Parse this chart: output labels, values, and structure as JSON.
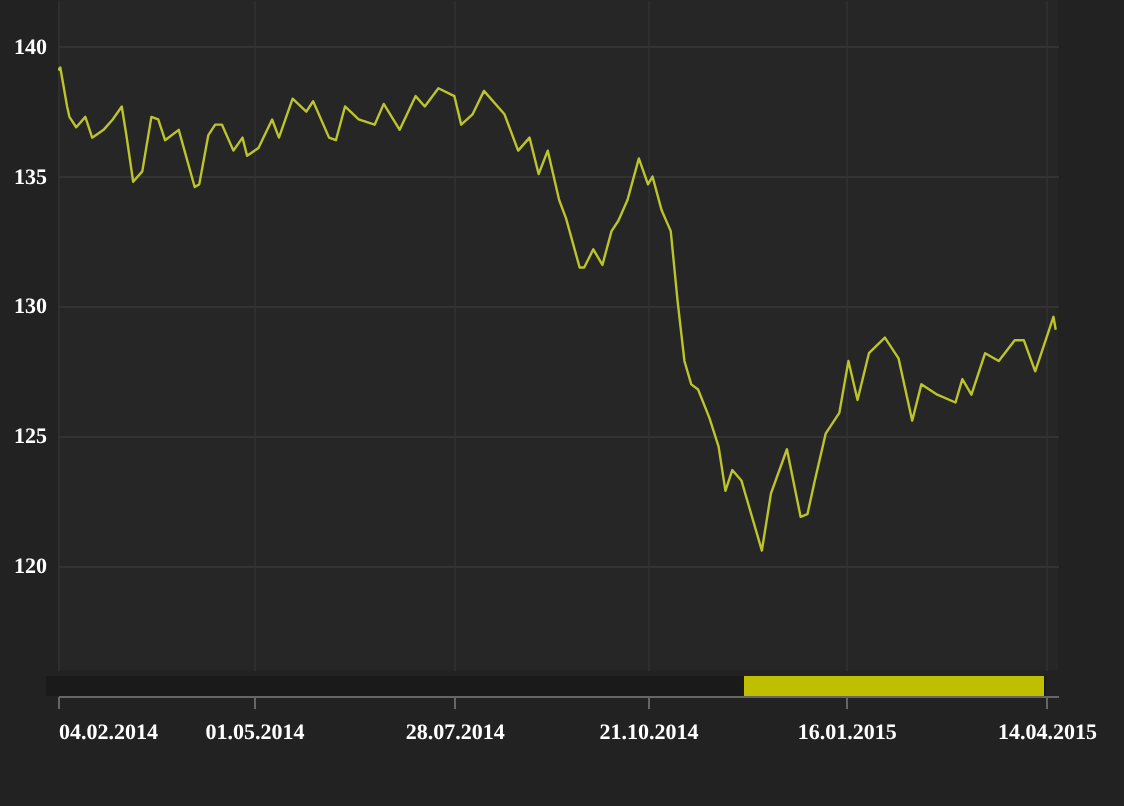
{
  "chart_data": {
    "type": "line",
    "x": [
      "2014-02-04",
      "2014-02-05",
      "2014-02-08",
      "2014-02-09",
      "2014-02-12",
      "2014-02-16",
      "2014-02-19",
      "2014-02-24",
      "2014-02-28",
      "2014-03-04",
      "2014-03-06",
      "2014-03-09",
      "2014-03-13",
      "2014-03-17",
      "2014-03-20",
      "2014-03-23",
      "2014-03-29",
      "2014-04-05",
      "2014-04-07",
      "2014-04-11",
      "2014-04-14",
      "2014-04-17",
      "2014-04-22",
      "2014-04-26",
      "2014-04-28",
      "2014-05-03",
      "2014-05-09",
      "2014-05-12",
      "2014-05-18",
      "2014-05-24",
      "2014-05-27",
      "2014-06-03",
      "2014-06-06",
      "2014-06-10",
      "2014-06-16",
      "2014-06-23",
      "2014-06-27",
      "2014-07-04",
      "2014-07-11",
      "2014-07-15",
      "2014-07-21",
      "2014-07-28",
      "2014-07-31",
      "2014-08-05",
      "2014-08-10",
      "2014-08-19",
      "2014-08-25",
      "2014-08-30",
      "2014-09-03",
      "2014-09-07",
      "2014-09-12",
      "2014-09-15",
      "2014-09-21",
      "2014-09-23",
      "2014-09-27",
      "2014-10-01",
      "2014-10-05",
      "2014-10-08",
      "2014-10-12",
      "2014-10-17",
      "2014-10-21",
      "2014-10-23",
      "2014-10-27",
      "2014-10-31",
      "2014-11-03",
      "2014-11-06",
      "2014-11-09",
      "2014-11-12",
      "2014-11-17",
      "2014-11-21",
      "2014-11-24",
      "2014-11-27",
      "2014-12-01",
      "2014-12-10",
      "2014-12-14",
      "2014-12-21",
      "2014-12-27",
      "2014-12-30",
      "2015-01-02",
      "2015-01-07",
      "2015-01-13",
      "2015-01-17",
      "2015-01-21",
      "2015-01-26",
      "2015-02-02",
      "2015-02-08",
      "2015-02-14",
      "2015-02-18",
      "2015-02-25",
      "2015-03-05",
      "2015-03-08",
      "2015-03-12",
      "2015-03-18",
      "2015-03-24",
      "2015-03-31",
      "2015-04-04",
      "2015-04-09",
      "2015-04-17",
      "2015-04-18"
    ],
    "series": [
      {
        "color": "#bcc42c",
        "values": [
          139.1,
          139.2,
          137.7,
          137.3,
          136.9,
          137.3,
          136.5,
          136.8,
          137.2,
          137.7,
          136.6,
          134.8,
          135.2,
          137.3,
          137.2,
          136.4,
          136.8,
          134.6,
          134.7,
          136.6,
          137.0,
          137.0,
          136.0,
          136.5,
          135.8,
          136.1,
          137.2,
          136.5,
          138.0,
          137.5,
          137.9,
          136.5,
          136.4,
          137.7,
          137.2,
          137.0,
          137.8,
          136.8,
          138.1,
          137.7,
          138.4,
          138.1,
          137.0,
          137.4,
          138.3,
          137.4,
          136.0,
          136.5,
          135.1,
          136.0,
          134.1,
          133.4,
          131.5,
          131.5,
          132.2,
          131.6,
          132.9,
          133.3,
          134.1,
          135.7,
          134.7,
          135.0,
          133.7,
          132.9,
          130.2,
          127.9,
          127.0,
          126.8,
          125.7,
          124.6,
          122.9,
          123.7,
          123.3,
          120.6,
          122.8,
          124.5,
          121.9,
          122.0,
          123.2,
          125.1,
          125.9,
          127.9,
          126.4,
          128.2,
          128.8,
          128.0,
          125.6,
          127.0,
          126.6,
          126.3,
          127.2,
          126.6,
          128.2,
          127.9,
          128.7,
          128.7,
          127.5,
          129.6,
          129.1
        ]
      }
    ],
    "xlim": [
      "2014-02-04",
      "2015-04-19"
    ],
    "xticks": [
      {
        "value": "2014-02-04",
        "label": "04.02.2014"
      },
      {
        "value": "2014-05-01",
        "label": "01.05.2014"
      },
      {
        "value": "2014-07-28",
        "label": "28.07.2014"
      },
      {
        "value": "2014-10-21",
        "label": "21.10.2014"
      },
      {
        "value": "2015-01-16",
        "label": "16.01.2015"
      },
      {
        "value": "2015-04-14",
        "label": "14.04.2015"
      }
    ],
    "ylim": [
      116,
      141.8
    ],
    "yticks": [
      120,
      125,
      130,
      135,
      140
    ],
    "grid": true
  }
}
